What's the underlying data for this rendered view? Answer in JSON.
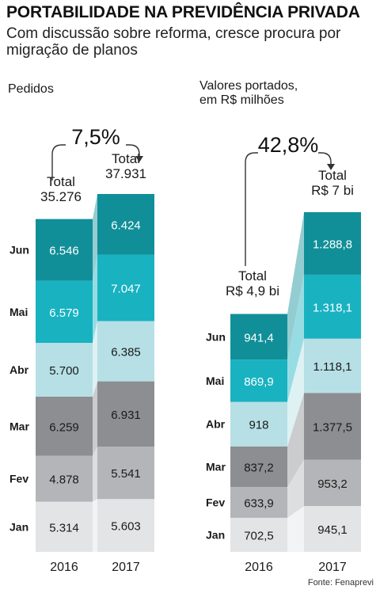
{
  "title": "PORTABILIDADE NA PREVIDÊNCIA PRIVADA",
  "subtitle": "Com discussão sobre reforma, cresce procura por migração de planos",
  "source": "Fonte: Fenaprevi",
  "chart_data": [
    {
      "type": "bar",
      "stacked": true,
      "title": "Pedidos",
      "categories": [
        "2016",
        "2017"
      ],
      "growth_label": "7,5%",
      "totals": [
        "Total\n35.276",
        "Total\n37.931"
      ],
      "totals_values": [
        35276,
        37931
      ],
      "series": [
        {
          "name": "Jan",
          "values": [
            5314,
            5603
          ],
          "labels": [
            "5.314",
            "5.603"
          ],
          "color": "#e3e4e6"
        },
        {
          "name": "Fev",
          "values": [
            4878,
            5541
          ],
          "labels": [
            "4.878",
            "5.541"
          ],
          "color": "#b4b5b8"
        },
        {
          "name": "Mar",
          "values": [
            6259,
            6931
          ],
          "labels": [
            "6.259",
            "6.931"
          ],
          "color": "#8c8e91"
        },
        {
          "name": "Abr",
          "values": [
            5700,
            6385
          ],
          "labels": [
            "5.700",
            "6.385"
          ],
          "color": "#b6e0e5"
        },
        {
          "name": "Mai",
          "values": [
            6579,
            7047
          ],
          "labels": [
            "6.579",
            "7.047"
          ],
          "color": "#19b2c1"
        },
        {
          "name": "Jun",
          "values": [
            6546,
            6424
          ],
          "labels": [
            "6.546",
            "6.424"
          ],
          "color": "#118f98"
        }
      ]
    },
    {
      "type": "bar",
      "stacked": true,
      "title": "Valores portados,\nem R$ milhões",
      "categories": [
        "2016",
        "2017"
      ],
      "growth_label": "42,8%",
      "totals": [
        "Total\nR$ 4,9 bi",
        "Total\nR$ 7 bi"
      ],
      "totals_values": [
        4900,
        7000
      ],
      "series": [
        {
          "name": "Jan",
          "values": [
            702.5,
            945.1
          ],
          "labels": [
            "702,5",
            "945,1"
          ],
          "color": "#e3e4e6"
        },
        {
          "name": "Fev",
          "values": [
            633.9,
            953.2
          ],
          "labels": [
            "633,9",
            "953,2"
          ],
          "color": "#b4b5b8"
        },
        {
          "name": "Mar",
          "values": [
            837.2,
            1377.5
          ],
          "labels": [
            "837,2",
            "1.377,5"
          ],
          "color": "#8c8e91"
        },
        {
          "name": "Abr",
          "values": [
            918,
            1118.1
          ],
          "labels": [
            "918",
            "1.118,1"
          ],
          "color": "#b6e0e5"
        },
        {
          "name": "Mai",
          "values": [
            869.9,
            1318.1
          ],
          "labels": [
            "869,9",
            "1.318,1"
          ],
          "color": "#19b2c1"
        },
        {
          "name": "Jun",
          "values": [
            941.4,
            1288.8
          ],
          "labels": [
            "941,4",
            "1.288,8"
          ],
          "color": "#118f98"
        }
      ]
    }
  ]
}
